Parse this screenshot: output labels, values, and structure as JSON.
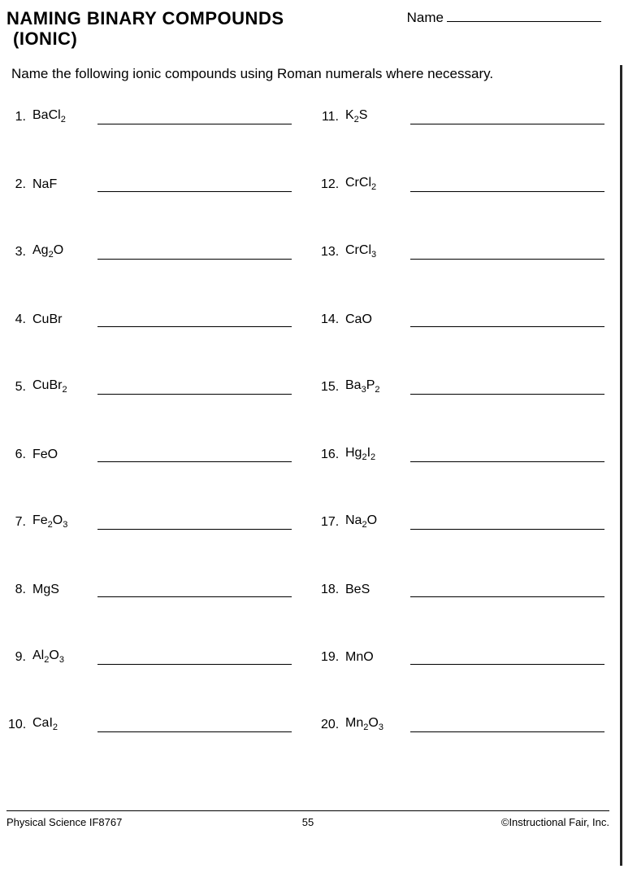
{
  "header": {
    "title_line1": "NAMING BINARY COMPOUNDS",
    "title_line2": "(IONIC)",
    "name_label": "Name"
  },
  "instructions": "Name the following ionic compounds using Roman numerals where necessary.",
  "left_column": [
    {
      "num": "1.",
      "formula": "BaCl<sub>2</sub>"
    },
    {
      "num": "2.",
      "formula": "NaF"
    },
    {
      "num": "3.",
      "formula": "Ag<sub>2</sub>O"
    },
    {
      "num": "4.",
      "formula": "CuBr"
    },
    {
      "num": "5.",
      "formula": "CuBr<sub>2</sub>"
    },
    {
      "num": "6.",
      "formula": "FeO"
    },
    {
      "num": "7.",
      "formula": "Fe<sub>2</sub>O<sub>3</sub>"
    },
    {
      "num": "8.",
      "formula": "MgS"
    },
    {
      "num": "9.",
      "formula": "Al<sub>2</sub>O<sub>3</sub>"
    },
    {
      "num": "10.",
      "formula": "CaI<sub>2</sub>"
    }
  ],
  "right_column": [
    {
      "num": "11.",
      "formula": "K<sub>2</sub>S"
    },
    {
      "num": "12.",
      "formula": "CrCl<sub>2</sub>"
    },
    {
      "num": "13.",
      "formula": "CrCl<sub>3</sub>"
    },
    {
      "num": "14.",
      "formula": "CaO"
    },
    {
      "num": "15.",
      "formula": "Ba<sub>3</sub>P<sub>2</sub>"
    },
    {
      "num": "16.",
      "formula": "Hg<sub>2</sub>I<sub>2</sub>"
    },
    {
      "num": "17.",
      "formula": "Na<sub>2</sub>O"
    },
    {
      "num": "18.",
      "formula": "BeS"
    },
    {
      "num": "19.",
      "formula": "MnO"
    },
    {
      "num": "20.",
      "formula": "Mn<sub>2</sub>O<sub>3</sub>"
    }
  ],
  "footer": {
    "left": "Physical Science IF8767",
    "page": "55",
    "right": "©Instructional Fair, Inc."
  }
}
